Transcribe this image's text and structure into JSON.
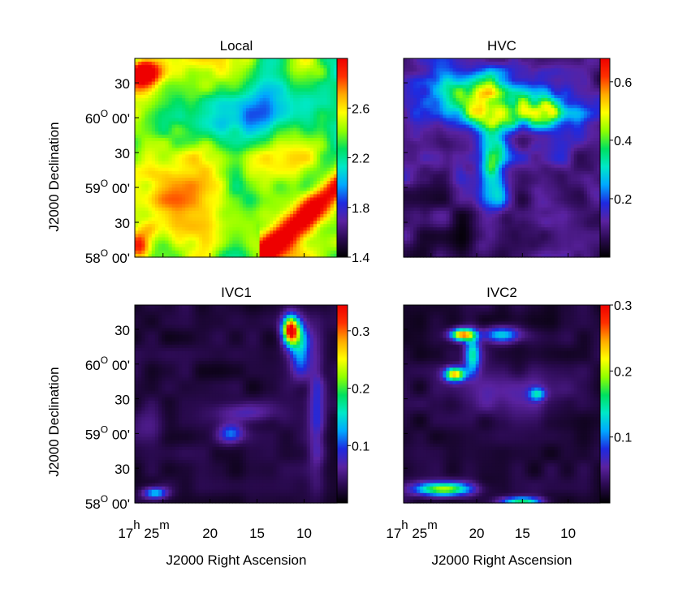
{
  "chart_data": [
    {
      "type": "heatmap",
      "title": "Local",
      "xlabel": "",
      "ylabel": "J2000 Declination",
      "y_ticks": [
        {
          "value": 58.0,
          "parts": [
            "58",
            "O",
            " 00'"
          ]
        },
        {
          "value": 58.5,
          "parts": [
            "30",
            "",
            ""
          ]
        },
        {
          "value": 59.0,
          "parts": [
            "59",
            "O",
            " 00'"
          ]
        },
        {
          "value": 59.5,
          "parts": [
            "30",
            "",
            ""
          ]
        },
        {
          "value": 60.0,
          "parts": [
            "60",
            "O",
            " 00'"
          ]
        },
        {
          "value": 60.5,
          "parts": [
            "30",
            "",
            ""
          ]
        }
      ],
      "x_ticks": [],
      "ylim": [
        58.0,
        60.85
      ],
      "colorbar": {
        "range": [
          1.4,
          3.0
        ],
        "ticks": [
          {
            "value": 1.4,
            "label": "1.4"
          },
          {
            "value": 1.8,
            "label": "1.8"
          },
          {
            "value": 2.2,
            "label": "2.2"
          },
          {
            "value": 2.6,
            "label": "2.6"
          }
        ]
      }
    },
    {
      "type": "heatmap",
      "title": "HVC",
      "xlabel": "",
      "ylabel": "",
      "y_ticks": [],
      "x_ticks": [],
      "colorbar": {
        "range": [
          0.0,
          0.68
        ],
        "ticks": [
          {
            "value": 0.2,
            "label": "0.2"
          },
          {
            "value": 0.4,
            "label": "0.4"
          },
          {
            "value": 0.6,
            "label": "0.6"
          }
        ]
      }
    },
    {
      "type": "heatmap",
      "title": "IVC1",
      "xlabel": "J2000 Right Ascension",
      "ylabel": "J2000 Declination",
      "y_ticks": [
        {
          "value": 58.0,
          "parts": [
            "58",
            "O",
            " 00'"
          ]
        },
        {
          "value": 58.5,
          "parts": [
            "30",
            "",
            ""
          ]
        },
        {
          "value": 59.0,
          "parts": [
            "59",
            "O",
            " 00'"
          ]
        },
        {
          "value": 59.5,
          "parts": [
            "30",
            "",
            ""
          ]
        },
        {
          "value": 60.0,
          "parts": [
            "60",
            "O",
            " 00'"
          ]
        },
        {
          "value": 60.5,
          "parts": [
            "30",
            "",
            ""
          ]
        }
      ],
      "x_ticks": [
        {
          "value": 25.0,
          "parts": [
            "17",
            "h",
            " 25",
            "m"
          ]
        },
        {
          "value": 20.0,
          "parts": [
            "20",
            "",
            "",
            ""
          ]
        },
        {
          "value": 15.0,
          "parts": [
            "15",
            "",
            "",
            ""
          ]
        },
        {
          "value": 10.0,
          "parts": [
            "10",
            "",
            "",
            ""
          ]
        }
      ],
      "ylim": [
        58.0,
        60.85
      ],
      "colorbar": {
        "range": [
          0.0,
          0.345
        ],
        "ticks": [
          {
            "value": 0.1,
            "label": "0.1"
          },
          {
            "value": 0.2,
            "label": "0.2"
          },
          {
            "value": 0.3,
            "label": "0.3"
          }
        ]
      }
    },
    {
      "type": "heatmap",
      "title": "IVC2",
      "xlabel": "J2000 Right Ascension",
      "ylabel": "",
      "y_ticks": [],
      "x_ticks": [
        {
          "value": 25.0,
          "parts": [
            "17",
            "h",
            " 25",
            "m"
          ]
        },
        {
          "value": 20.0,
          "parts": [
            "20",
            "",
            "",
            ""
          ]
        },
        {
          "value": 15.0,
          "parts": [
            "15",
            "",
            "",
            ""
          ]
        },
        {
          "value": 10.0,
          "parts": [
            "10",
            "",
            "",
            ""
          ]
        }
      ],
      "colorbar": {
        "range": [
          0.0,
          0.3
        ],
        "ticks": [
          {
            "value": 0.1,
            "label": "0.1"
          },
          {
            "value": 0.2,
            "label": "0.2"
          },
          {
            "value": 0.3,
            "label": "0.3"
          }
        ]
      }
    }
  ],
  "colormap": [
    "#000000",
    "#2a0a50",
    "#5a22a0",
    "#1e2ae0",
    "#00a8ff",
    "#00e8c8",
    "#00e060",
    "#90ff00",
    "#ffff00",
    "#ffaa00",
    "#ff3000",
    "#ee0000"
  ],
  "ra_range": [
    28.0,
    6.5
  ]
}
